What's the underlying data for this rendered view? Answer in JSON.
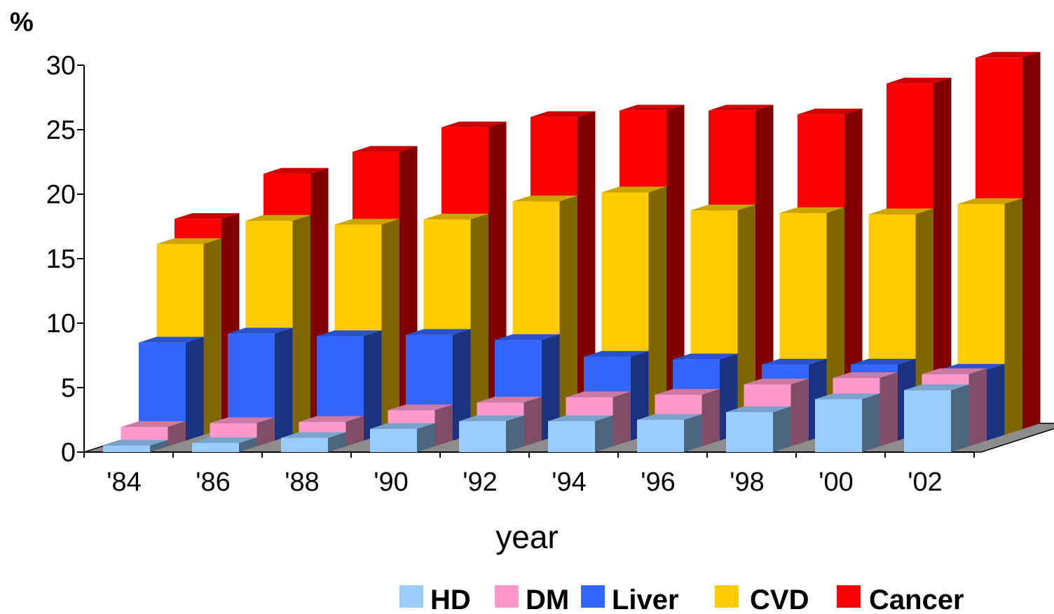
{
  "chart_data": {
    "type": "bar",
    "subtype": "3d-depth",
    "ylabel": "%",
    "xlabel": "year",
    "ylim": [
      0,
      30
    ],
    "yticks": [
      "0",
      "5",
      "10",
      "15",
      "20",
      "25",
      "30"
    ],
    "categories": [
      "'84",
      "'86",
      "'88",
      "'90",
      "'92",
      "'94",
      "'96",
      "'98",
      "'00",
      "'02"
    ],
    "grid": false,
    "legend_position": "bottom-right",
    "series": [
      {
        "name": "HD",
        "color": "#99ccff",
        "values": [
          0.5,
          0.7,
          1.1,
          1.8,
          2.4,
          2.4,
          2.5,
          3.1,
          4.1,
          4.8
        ]
      },
      {
        "name": "DM",
        "color": "#ff99cc",
        "values": [
          1.5,
          1.8,
          1.9,
          2.8,
          3.4,
          3.8,
          4.0,
          4.8,
          5.3,
          5.6
        ]
      },
      {
        "name": "Liver",
        "color": "#3366ff",
        "values": [
          7.6,
          8.3,
          8.1,
          8.2,
          7.8,
          6.5,
          6.3,
          5.9,
          5.9,
          5.5
        ]
      },
      {
        "name": "CVD",
        "color": "#ffcc00",
        "values": [
          14.8,
          16.6,
          16.3,
          16.7,
          18.1,
          18.8,
          17.4,
          17.2,
          17.1,
          17.9
        ]
      },
      {
        "name": "Cancer",
        "color": "#ff0000",
        "values": [
          16.3,
          19.8,
          21.5,
          23.4,
          24.2,
          24.7,
          24.7,
          24.4,
          26.8,
          28.8
        ]
      }
    ]
  }
}
